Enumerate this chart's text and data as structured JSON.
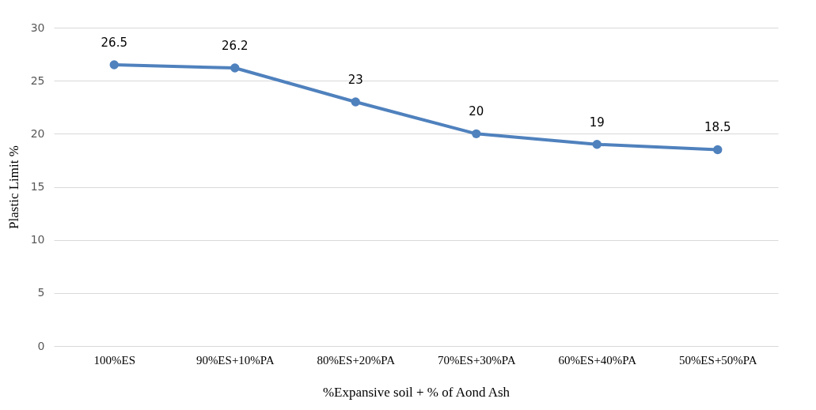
{
  "chart_data": {
    "type": "line",
    "xlabel": "%Expansive soil + % of  Aond Ash",
    "ylabel": "Plastic Limit %",
    "categories": [
      "100%ES",
      "90%ES+10%PA",
      "80%ES+20%PA",
      "70%ES+30%PA",
      "60%ES+40%PA",
      "50%ES+50%PA"
    ],
    "series": [
      {
        "color": "#4f81bd",
        "values": [
          26.5,
          26.2,
          23,
          20,
          19,
          18.5
        ]
      }
    ],
    "ylim": [
      0,
      30
    ],
    "yticks": [
      0,
      5,
      10,
      15,
      20,
      25,
      30
    ],
    "grid": "y",
    "marker": "circle",
    "line_style": "solid",
    "data_labels": true,
    "legend": false
  }
}
